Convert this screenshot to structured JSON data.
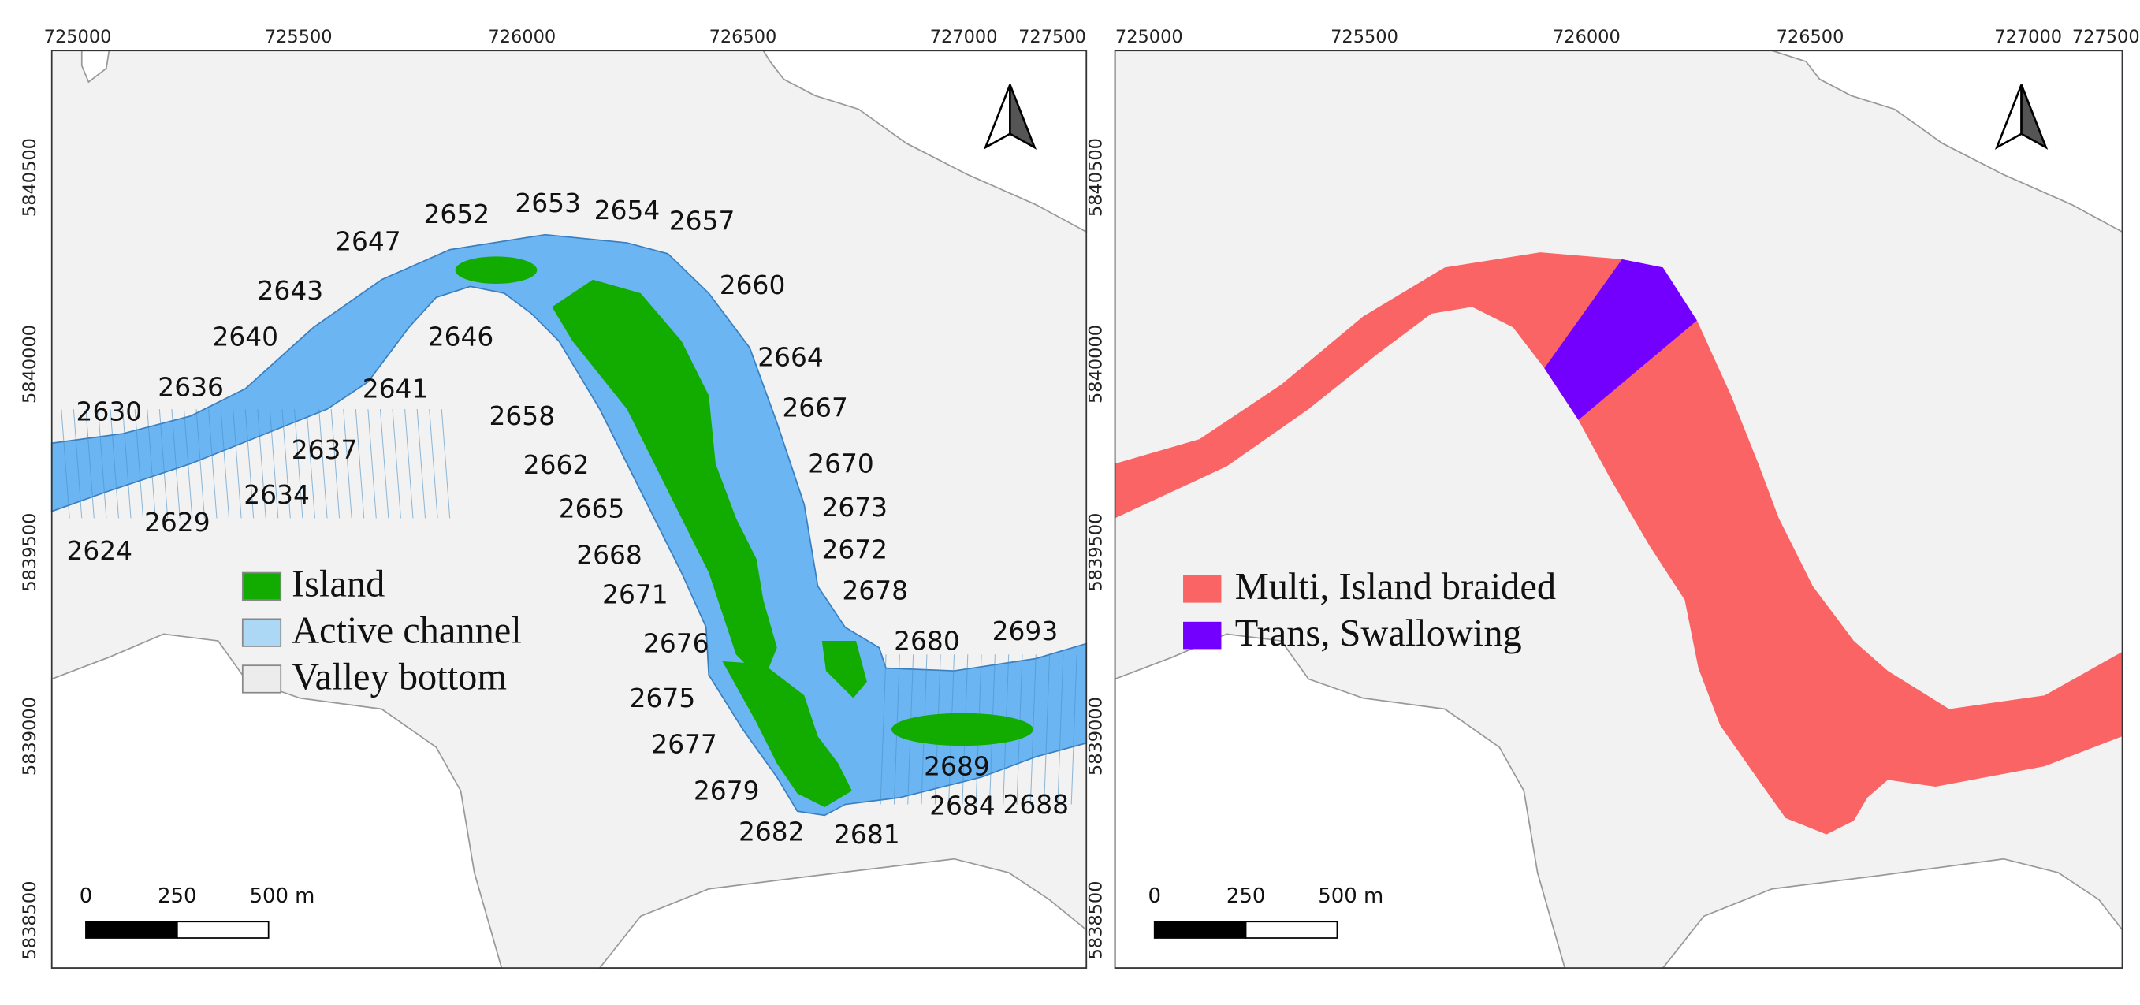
{
  "left_map": {
    "x_ticks": [
      "725000",
      "725500",
      "726000",
      "726500",
      "727000",
      "727500"
    ],
    "y_ticks": [
      "5840500",
      "5840000",
      "5839500",
      "5839000",
      "5838500"
    ],
    "transect_labels": [
      "2630",
      "2636",
      "2640",
      "2643",
      "2647",
      "2652",
      "2653",
      "2654",
      "2657",
      "2660",
      "2664",
      "2667",
      "2670",
      "2673",
      "2672",
      "2678",
      "2680",
      "2693",
      "2689",
      "2684",
      "2688",
      "2681",
      "2682",
      "2679",
      "2677",
      "2675",
      "2676",
      "2671",
      "2668",
      "2665",
      "2662",
      "2658",
      "2646",
      "2641",
      "2637",
      "2634",
      "2629",
      "2624"
    ],
    "legend": [
      {
        "label": "Island",
        "color": "#12ab00"
      },
      {
        "label": "Active channel",
        "color": "#acd8f6"
      },
      {
        "label": "Valley bottom",
        "color": "#ececec"
      }
    ],
    "scale_bar": {
      "labels": [
        "0",
        "250",
        "500 m"
      ]
    }
  },
  "right_map": {
    "x_ticks": [
      "725000",
      "725500",
      "726000",
      "726500",
      "727000",
      "727500"
    ],
    "y_ticks": [
      "5840500",
      "5840000",
      "5839500",
      "5839000",
      "5838500"
    ],
    "legend": [
      {
        "label": "Multi, Island braided",
        "color": "#fa6464"
      },
      {
        "label": "Trans, Swallowing",
        "color": "#7300ff"
      }
    ],
    "scale_bar": {
      "labels": [
        "0",
        "250",
        "500 m"
      ]
    }
  },
  "colors": {
    "channel": "#6bb6f2",
    "island": "#12ab00",
    "valley": "#f2f2f2",
    "multi": "#fa6464",
    "trans": "#7300ff"
  }
}
